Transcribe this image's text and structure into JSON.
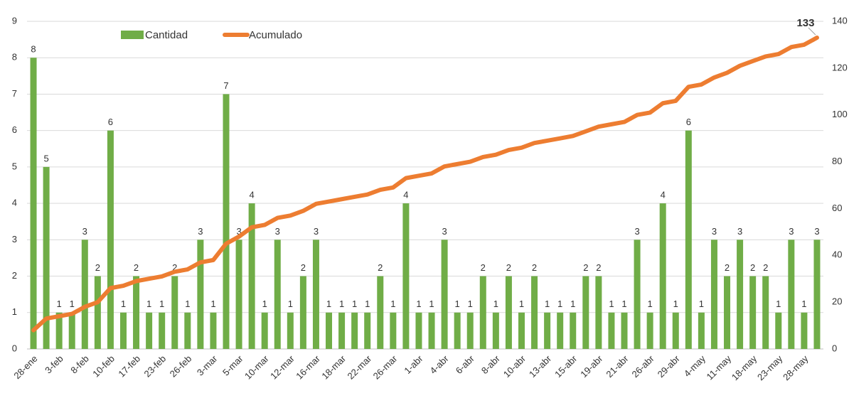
{
  "chart_data": {
    "type": "bar_line",
    "categories": [
      "28-ene",
      null,
      "3-feb",
      null,
      "8-feb",
      null,
      "10-feb",
      null,
      "17-feb",
      null,
      "23-feb",
      null,
      "26-feb",
      null,
      "3-mar",
      null,
      "5-mar",
      null,
      "10-mar",
      null,
      "12-mar",
      null,
      "16-mar",
      null,
      "18-mar",
      null,
      "22-mar",
      null,
      "26-mar",
      null,
      "1-abr",
      null,
      "4-abr",
      null,
      "6-abr",
      null,
      "8-abr",
      null,
      "10-abr",
      null,
      "13-abr",
      null,
      "15-abr",
      null,
      "19-abr",
      null,
      "21-abr",
      null,
      "26-abr",
      null,
      "29-abr",
      null,
      "4-may",
      null,
      "11-may",
      null,
      "18-may",
      null,
      "23-may",
      null,
      "28-may",
      null
    ],
    "series": [
      {
        "name": "Cantidad",
        "color": "#70ad47",
        "axis": "y",
        "values": [
          8,
          5,
          1,
          1,
          3,
          2,
          6,
          1,
          2,
          1,
          1,
          2,
          1,
          3,
          1,
          7,
          3,
          4,
          1,
          3,
          1,
          2,
          3,
          1,
          1,
          1,
          1,
          2,
          1,
          4,
          1,
          1,
          3,
          1,
          1,
          2,
          1,
          2,
          1,
          2,
          1,
          1,
          1,
          2,
          2,
          1,
          1,
          3,
          1,
          4,
          1,
          6,
          1,
          3,
          2,
          3,
          2,
          2,
          1,
          3,
          1,
          3
        ]
      },
      {
        "name": "Acumulado",
        "color": "#ed7d31",
        "axis": "y2",
        "values": [
          8,
          13,
          14,
          15,
          18,
          20,
          26,
          27,
          29,
          30,
          31,
          33,
          34,
          37,
          38,
          45,
          48,
          52,
          53,
          56,
          57,
          59,
          62,
          63,
          64,
          65,
          66,
          68,
          69,
          73,
          74,
          75,
          78,
          79,
          80,
          82,
          83,
          85,
          86,
          88,
          89,
          90,
          91,
          93,
          95,
          96,
          97,
          100,
          101,
          105,
          106,
          112,
          113,
          116,
          118,
          121,
          123,
          125,
          126,
          129,
          130,
          133
        ]
      }
    ],
    "ylim": [
      0,
      9
    ],
    "yticks": [
      0,
      1,
      2,
      3,
      4,
      5,
      6,
      7,
      8,
      9
    ],
    "y2lim": [
      0,
      140
    ],
    "y2ticks": [
      0,
      20,
      40,
      60,
      80,
      100,
      120,
      140
    ],
    "grid": true
  }
}
